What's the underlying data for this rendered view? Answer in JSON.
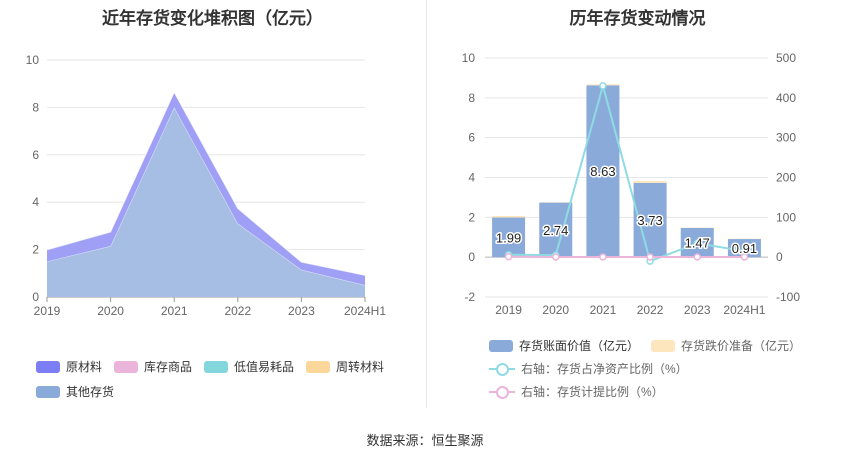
{
  "footer": {
    "source": "数据来源：恒生聚源"
  },
  "colors": {
    "raw_material": "#7b7ff3",
    "inventory_goods": "#ebb4db",
    "low_value": "#84d6dd",
    "turnover": "#fbd79a",
    "other": "#8aaad9",
    "book_value_bar": "#8aaad9",
    "impairment_bar": "#fde6be",
    "ratio_line": "#8fdbe3",
    "provision_line": "#ebb4db"
  },
  "chart_data": [
    {
      "type": "area",
      "title": "近年存货变化堆积图（亿元）",
      "categories": [
        "2019",
        "2020",
        "2021",
        "2022",
        "2023",
        "2024H1"
      ],
      "ylim": [
        0,
        10
      ],
      "yticks": [
        "0",
        "2",
        "4",
        "6",
        "8",
        "10"
      ],
      "grid": true,
      "stacked": true,
      "series": [
        {
          "name": "其他存货",
          "color": "#a6bde4",
          "values": [
            1.5,
            2.15,
            8.0,
            3.1,
            1.15,
            0.5
          ]
        },
        {
          "name": "周转材料",
          "color": "#fbd79a",
          "values": [
            0,
            0,
            0,
            0,
            0,
            0
          ]
        },
        {
          "name": "低值易耗品",
          "color": "#84d6dd",
          "values": [
            0,
            0,
            0,
            0,
            0,
            0
          ]
        },
        {
          "name": "库存商品",
          "color": "#ebb4db",
          "values": [
            0,
            0,
            0,
            0,
            0,
            0
          ]
        },
        {
          "name": "原材料",
          "color": "#9e9ff5",
          "values": [
            0.49,
            0.59,
            0.63,
            0.63,
            0.32,
            0.41
          ]
        }
      ],
      "legend": [
        {
          "name": "原材料",
          "color": "#7b7ff3"
        },
        {
          "name": "库存商品",
          "color": "#ebb4db"
        },
        {
          "name": "低值易耗品",
          "color": "#84d6dd"
        },
        {
          "name": "周转材料",
          "color": "#fbd79a"
        },
        {
          "name": "其他存货",
          "color": "#8aaad9"
        }
      ]
    },
    {
      "type": "bar",
      "title": "历年存货变动情况",
      "categories": [
        "2019",
        "2020",
        "2021",
        "2022",
        "2023",
        "2024H1"
      ],
      "ylim": [
        -2,
        10
      ],
      "yticks": [
        "-2",
        "0",
        "2",
        "4",
        "6",
        "8",
        "10"
      ],
      "y2lim": [
        -100,
        500
      ],
      "y2ticks": [
        "-100",
        "0",
        "100",
        "200",
        "300",
        "400",
        "500"
      ],
      "grid": true,
      "series": [
        {
          "name": "存货账面价值（亿元）",
          "type": "bar",
          "color": "#8aaad9",
          "values": [
            1.99,
            2.74,
            8.63,
            3.73,
            1.47,
            0.91
          ],
          "labels": [
            "1.99",
            "2.74",
            "8.63",
            "3.73",
            "1.47",
            "0.91"
          ]
        },
        {
          "name": "存货跌价准备（亿元）",
          "type": "bar",
          "color": "#fde6be",
          "values": [
            0.08,
            0.02,
            0.05,
            0.1,
            0.02,
            0.02
          ]
        },
        {
          "name": "右轴：存货占净资产比例（%）",
          "type": "line",
          "axis": "right",
          "color": "#8fdbe3",
          "values": [
            6,
            5,
            430,
            -10,
            35,
            15
          ]
        },
        {
          "name": "右轴：存货计提比例（%）",
          "type": "line",
          "axis": "right",
          "color": "#ebb4db",
          "values": [
            1,
            0.5,
            0.5,
            0.5,
            0.5,
            0.5
          ]
        }
      ]
    }
  ]
}
